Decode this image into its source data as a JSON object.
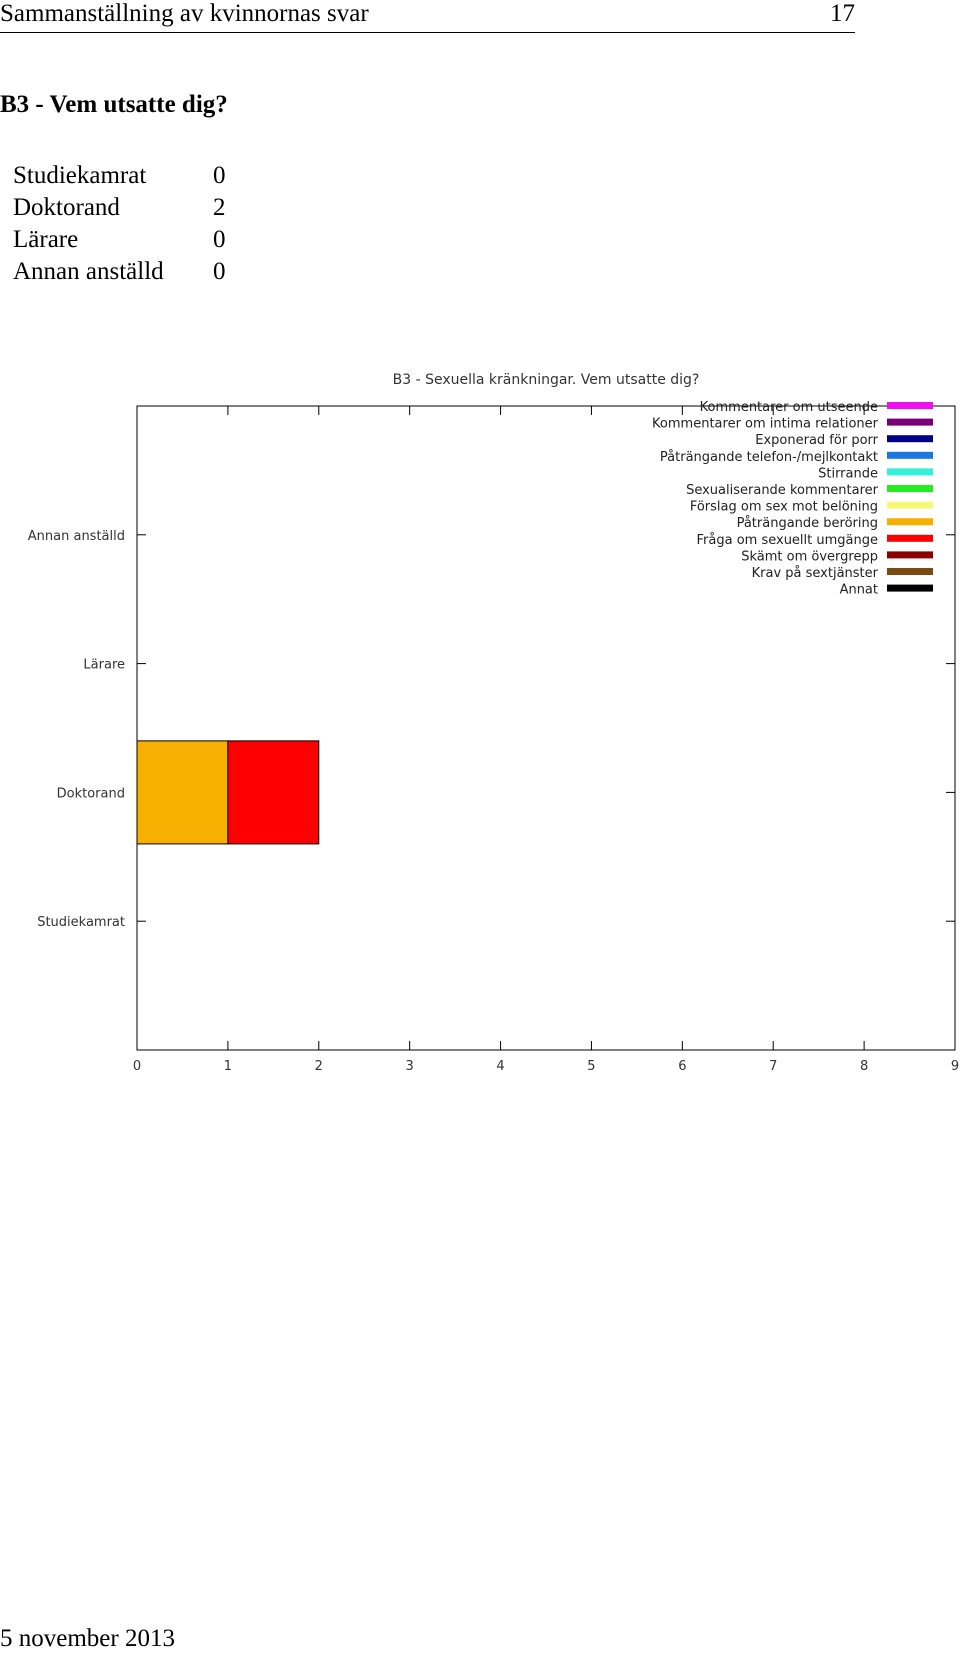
{
  "header": {
    "title": "Sammanställning av kvinnornas svar",
    "page_number": "17"
  },
  "section": {
    "heading": "B3 - Vem utsatte dig?"
  },
  "summary": [
    {
      "label": "Studiekamrat",
      "value": "0"
    },
    {
      "label": "Doktorand",
      "value": "2"
    },
    {
      "label": "Lärare",
      "value": "0"
    },
    {
      "label": "Annan anställd",
      "value": "0"
    }
  ],
  "chart_data": {
    "type": "bar",
    "orientation": "horizontal",
    "stacked": true,
    "title": "B3 - Sexuella kränkningar. Vem utsatte dig?",
    "categories": [
      "Studiekamrat",
      "Doktorand",
      "Lärare",
      "Annan anställd"
    ],
    "xlim": [
      0,
      9
    ],
    "xticks": [
      "0",
      "1",
      "2",
      "3",
      "4",
      "5",
      "6",
      "7",
      "8",
      "9"
    ],
    "grid": false,
    "legend_position": "top-right",
    "series": [
      {
        "name": "Kommentarer om utseende",
        "color": "#ee11ee",
        "values": [
          0,
          0,
          0,
          0
        ]
      },
      {
        "name": "Kommentarer om intima relationer",
        "color": "#770077",
        "values": [
          0,
          0,
          0,
          0
        ]
      },
      {
        "name": "Exponerad för porr",
        "color": "#000088",
        "values": [
          0,
          0,
          0,
          0
        ]
      },
      {
        "name": "Påträngande telefon-/mejlkontakt",
        "color": "#1a78e0",
        "values": [
          0,
          0,
          0,
          0
        ]
      },
      {
        "name": "Stirrande",
        "color": "#33f0d8",
        "values": [
          0,
          0,
          0,
          0
        ]
      },
      {
        "name": "Sexualiserande kommentarer",
        "color": "#22ee22",
        "values": [
          0,
          0,
          0,
          0
        ]
      },
      {
        "name": "Förslag om sex mot belöning",
        "color": "#f8f878",
        "values": [
          0,
          0,
          0,
          0
        ]
      },
      {
        "name": "Påträngande beröring",
        "color": "#f8b000",
        "values": [
          0,
          1,
          0,
          0
        ]
      },
      {
        "name": "Fråga om sexuellt umgänge",
        "color": "#ff0000",
        "values": [
          0,
          1,
          0,
          0
        ]
      },
      {
        "name": "Skämt om övergrepp",
        "color": "#8b0000",
        "values": [
          0,
          0,
          0,
          0
        ]
      },
      {
        "name": "Krav på sextjänster",
        "color": "#7a4a10",
        "values": [
          0,
          0,
          0,
          0
        ]
      },
      {
        "name": "Annat",
        "color": "#000000",
        "values": [
          0,
          0,
          0,
          0
        ]
      }
    ]
  },
  "footer": {
    "date": "5 november 2013"
  }
}
